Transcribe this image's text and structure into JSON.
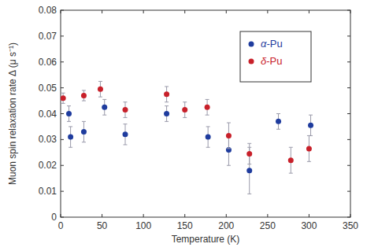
{
  "chart_data": {
    "type": "scatter",
    "x_label": "Temperature (K)",
    "y_label": "Muon spin relaxation rate  Δ (μ s⁻¹)",
    "xlim": [
      0,
      350
    ],
    "xticks": [
      0,
      50,
      100,
      150,
      200,
      250,
      300,
      350
    ],
    "ylim": [
      0,
      0.08
    ],
    "yticks": [
      0,
      0.01,
      0.02,
      0.03,
      0.04,
      0.05,
      0.06,
      0.07,
      0.08
    ],
    "grid": false,
    "legend": "upper right",
    "marker": "circle",
    "series": [
      {
        "name": "α-Pu",
        "color": "#1f3c9e",
        "x": [
          10,
          12,
          28,
          53,
          78,
          128,
          178,
          203,
          228,
          263,
          302
        ],
        "values": [
          0.04,
          0.031,
          0.033,
          0.0425,
          0.032,
          0.04,
          0.031,
          0.026,
          0.018,
          0.037,
          0.0355
        ],
        "errors": [
          0.003,
          0.004,
          0.004,
          0.003,
          0.004,
          0.003,
          0.004,
          0.006,
          0.009,
          0.003,
          0.004
        ]
      },
      {
        "name": "δ-Pu",
        "color": "#c8202a",
        "x": [
          3,
          28,
          48,
          78,
          128,
          150,
          177,
          203,
          228,
          278,
          300
        ],
        "values": [
          0.046,
          0.047,
          0.0495,
          0.0415,
          0.0475,
          0.0415,
          0.0425,
          0.0315,
          0.0245,
          0.022,
          0.0265
        ],
        "errors": [
          0.002,
          0.002,
          0.003,
          0.003,
          0.003,
          0.003,
          0.003,
          0.005,
          0.004,
          0.005,
          0.005
        ]
      }
    ]
  }
}
